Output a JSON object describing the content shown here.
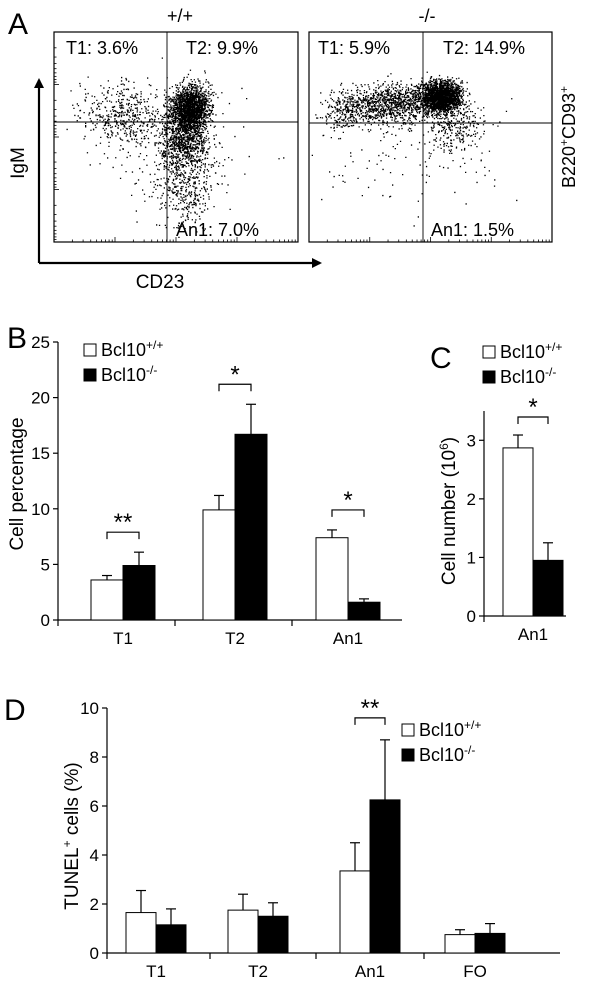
{
  "chart_data": [
    {
      "panel": "A",
      "type": "scatter",
      "genotypes": [
        "+/+",
        "-/-"
      ],
      "xlabel": "CD23",
      "ylabel": "IgM",
      "side_label": {
        "base": "B220",
        "sup1": "+",
        "mid": "CD93",
        "sup2": "+"
      },
      "plots": [
        {
          "genotype": "+/+",
          "gates": [
            {
              "text": "T1: 3.6%",
              "value": 3.6
            },
            {
              "text": "T2: 9.9%",
              "value": 9.9
            },
            {
              "text": "An1: 7.0%",
              "value": 7.0
            }
          ]
        },
        {
          "genotype": "-/-",
          "gates": [
            {
              "text": "T1: 5.9%",
              "value": 5.9
            },
            {
              "text": "T2: 14.9%",
              "value": 14.9
            },
            {
              "text": "An1: 1.5%",
              "value": 1.5
            }
          ]
        }
      ]
    },
    {
      "panel": "B",
      "type": "bar",
      "categories": [
        "T1",
        "T2",
        "An1"
      ],
      "ylabel": "Cell percentage",
      "ylim": [
        0,
        25
      ],
      "yticks": [
        0,
        5,
        10,
        15,
        20,
        25
      ],
      "series": [
        {
          "name": "Bcl10",
          "sup": "+/+",
          "fill": "#ffffff",
          "values": [
            3.6,
            9.9,
            7.4
          ],
          "errors": [
            0.4,
            1.3,
            0.7
          ]
        },
        {
          "name": "Bcl10",
          "sup": "-/-",
          "fill": "#000000",
          "values": [
            4.9,
            16.7,
            1.6
          ],
          "errors": [
            1.2,
            2.7,
            0.3
          ]
        }
      ],
      "significance": [
        "**",
        "*",
        "*"
      ]
    },
    {
      "panel": "C",
      "type": "bar",
      "categories": [
        "An1"
      ],
      "ylabel_base": "Cell number (10",
      "ylabel_sup": "6",
      "ylabel_end": ")",
      "ylim": [
        0,
        3.5
      ],
      "yticks": [
        0,
        1,
        2,
        3
      ],
      "series": [
        {
          "name": "Bcl10",
          "sup": "+/+",
          "fill": "#ffffff",
          "values": [
            2.87
          ],
          "errors": [
            0.22
          ]
        },
        {
          "name": "Bcl10",
          "sup": "-/-",
          "fill": "#000000",
          "values": [
            0.95
          ],
          "errors": [
            0.3
          ]
        }
      ],
      "significance": [
        "*"
      ]
    },
    {
      "panel": "D",
      "type": "bar",
      "categories": [
        "T1",
        "T2",
        "An1",
        "FO"
      ],
      "ylabel_base": "TUNEL",
      "ylabel_sup": "+",
      "ylabel_end": " cells (%)",
      "ylim": [
        0,
        10
      ],
      "yticks": [
        0,
        2,
        4,
        6,
        8,
        10
      ],
      "series": [
        {
          "name": "Bcl10",
          "sup": "+/+",
          "fill": "#ffffff",
          "values": [
            1.65,
            1.75,
            3.35,
            0.75
          ],
          "errors": [
            0.9,
            0.65,
            1.15,
            0.2
          ]
        },
        {
          "name": "Bcl10",
          "sup": "-/-",
          "fill": "#000000",
          "values": [
            1.15,
            1.5,
            6.25,
            0.8
          ],
          "errors": [
            0.65,
            0.55,
            2.45,
            0.4
          ]
        }
      ],
      "significance": [
        "",
        "",
        "**",
        ""
      ]
    }
  ]
}
